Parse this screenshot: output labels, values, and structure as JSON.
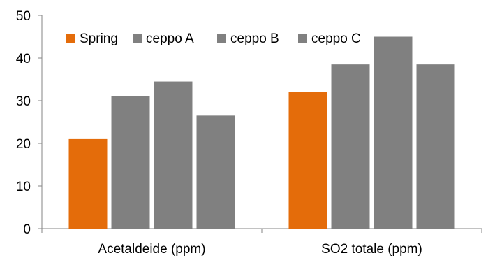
{
  "chart_data": {
    "type": "bar",
    "categories": [
      "Acetaldeide (ppm)",
      "SO2 totale (ppm)"
    ],
    "series": [
      {
        "name": "Spring",
        "values": [
          21,
          32
        ],
        "color": "#E46C0A"
      },
      {
        "name": "ceppo A",
        "values": [
          31,
          38.5
        ],
        "color": "#808080"
      },
      {
        "name": "ceppo B",
        "values": [
          34.5,
          45
        ],
        "color": "#808080"
      },
      {
        "name": "ceppo C",
        "values": [
          26.5,
          38.5
        ],
        "color": "#808080"
      }
    ],
    "ylim": [
      0,
      50
    ],
    "yticks": [
      0,
      10,
      20,
      30,
      40,
      50
    ],
    "grid": false,
    "legend_position": "top-left"
  }
}
